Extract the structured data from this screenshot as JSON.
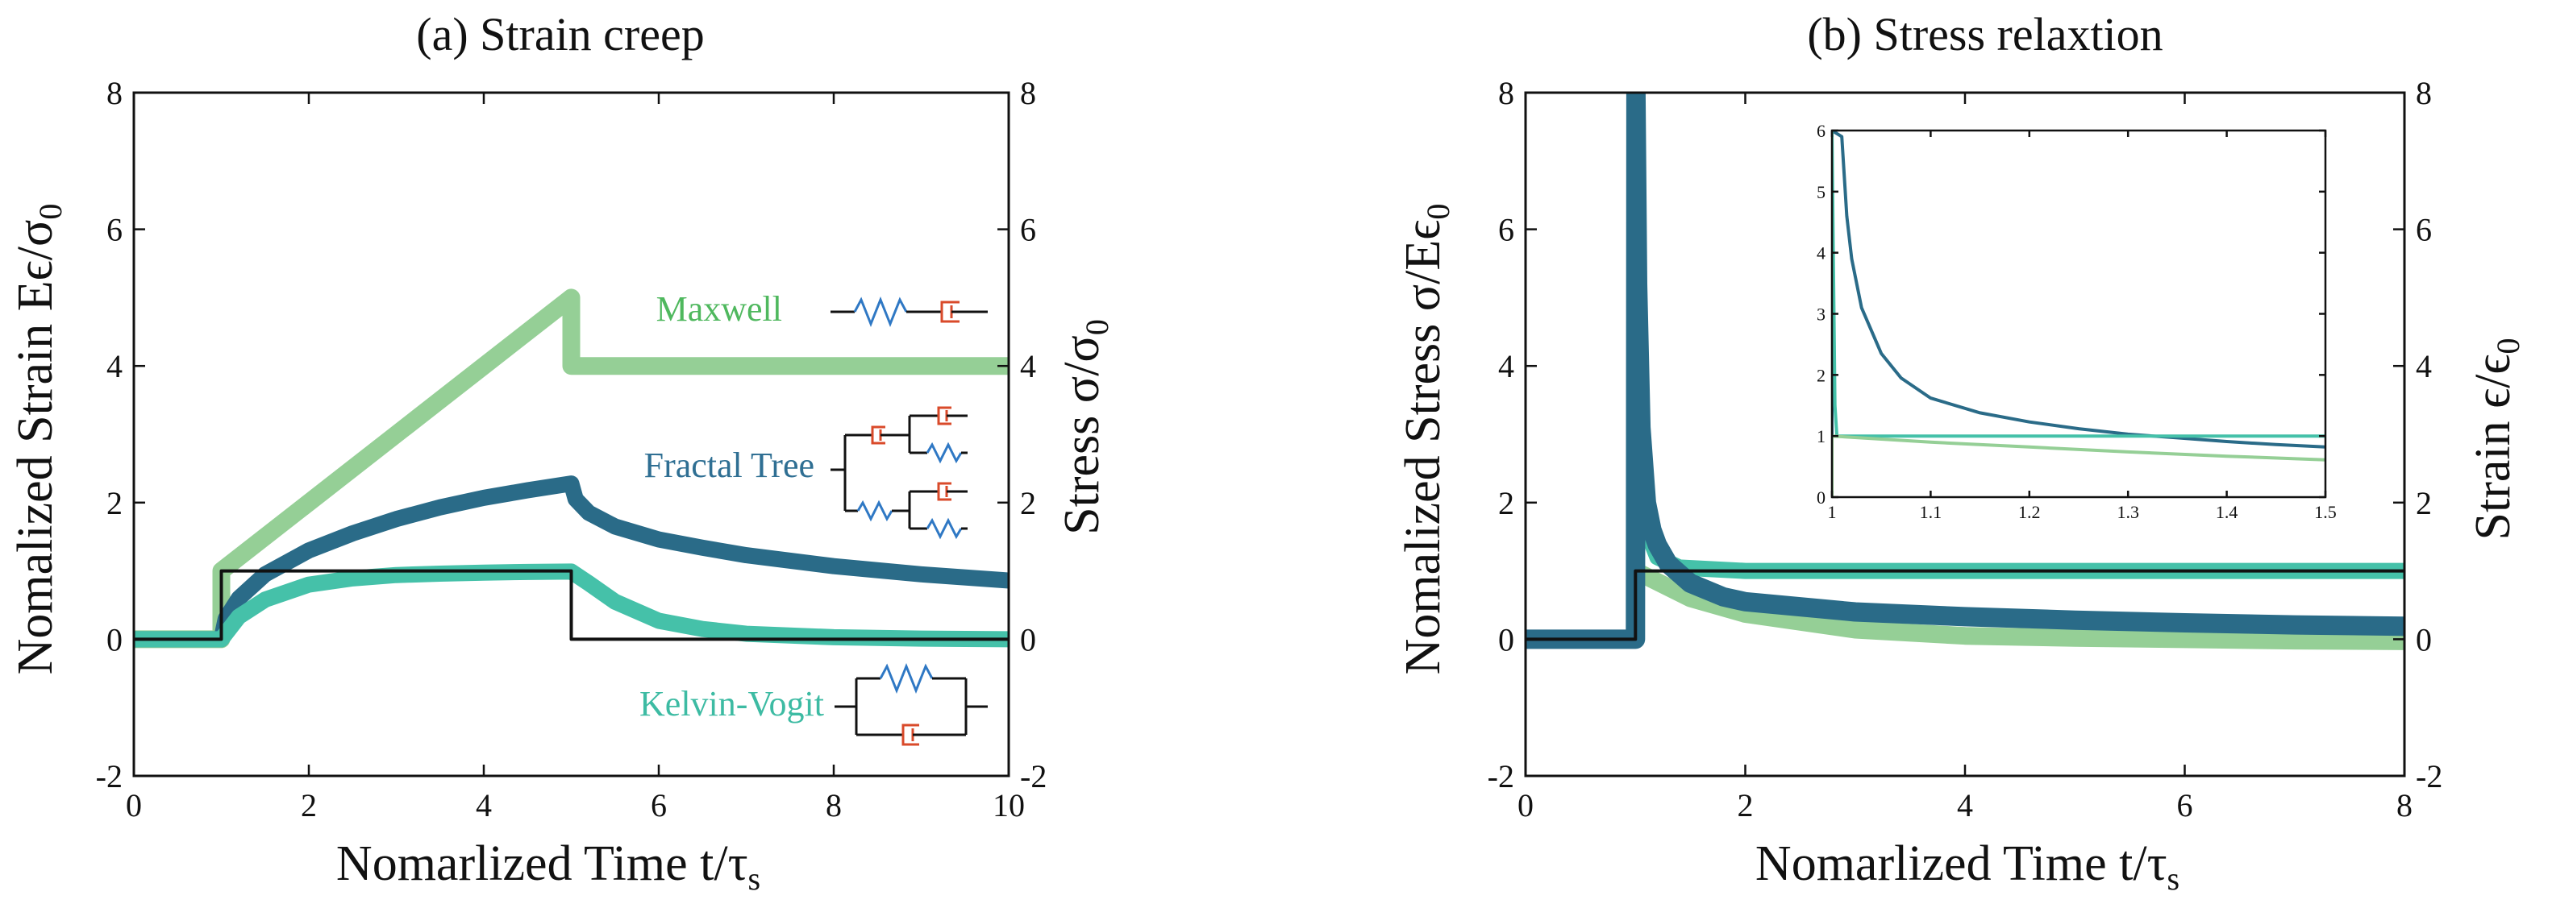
{
  "chart_data": [
    {
      "type": "line",
      "title": "(a)  Strain creep",
      "xlabel": "Nomarlized Time  t/τs",
      "ylabel": "Nomalized Strain  Eϵ/σ0",
      "y2label": "Stress  σ/σ0",
      "xlim": [
        0,
        10
      ],
      "ylim": [
        -2,
        8
      ],
      "y2lim": [
        -2,
        8
      ],
      "xticks": [
        "0",
        "2",
        "4",
        "6",
        "8",
        "10"
      ],
      "yticks": [
        "-2",
        "0",
        "2",
        "4",
        "6",
        "8"
      ],
      "y2ticks": [
        "-2",
        "0",
        "2",
        "4",
        "6",
        "8"
      ],
      "series": [
        {
          "name": "Maxwell",
          "color": "#95cf96",
          "x": [
            0,
            1,
            1,
            2,
            3,
            4,
            5,
            5,
            6,
            7,
            8,
            9,
            10
          ],
          "y": [
            0,
            0,
            1,
            2,
            3,
            4,
            5,
            4,
            4,
            4,
            4,
            4,
            4
          ]
        },
        {
          "name": "Fractal Tree",
          "color": "#2a6b88",
          "x": [
            0,
            1,
            1.05,
            1.2,
            1.5,
            2,
            2.5,
            3,
            3.5,
            4,
            4.5,
            5,
            5.05,
            5.2,
            5.5,
            6,
            6.5,
            7,
            8,
            9,
            10
          ],
          "y": [
            0,
            0,
            0.3,
            0.6,
            0.95,
            1.3,
            1.55,
            1.76,
            1.93,
            2.07,
            2.18,
            2.28,
            2.05,
            1.85,
            1.65,
            1.46,
            1.34,
            1.23,
            1.07,
            0.95,
            0.86
          ]
        },
        {
          "name": "Kelvin-Vogit",
          "color": "#45c1a9",
          "x": [
            0,
            1,
            1.2,
            1.5,
            2,
            2.5,
            3,
            3.5,
            4,
            4.5,
            5,
            5.2,
            5.5,
            6,
            6.5,
            7,
            8,
            9,
            10
          ],
          "y": [
            0,
            0,
            0.33,
            0.58,
            0.8,
            0.89,
            0.94,
            0.96,
            0.975,
            0.985,
            0.99,
            0.82,
            0.55,
            0.27,
            0.15,
            0.08,
            0.03,
            0.01,
            0.0
          ]
        },
        {
          "name": "Stress",
          "color": "#111111",
          "x": [
            0,
            1,
            1,
            5,
            5,
            10
          ],
          "y": [
            0,
            0,
            1,
            1,
            0,
            0
          ]
        }
      ]
    },
    {
      "type": "line",
      "title": "(b)  Stress relaxtion",
      "xlabel": "Nomarlized Time  t/τs",
      "ylabel": "Nomalized Stress  σ/Eϵ0",
      "y2label": "Strain  ϵ/ϵ0",
      "xlim": [
        0,
        8
      ],
      "ylim": [
        -2,
        8
      ],
      "y2lim": [
        -2,
        8
      ],
      "xticks": [
        "0",
        "2",
        "4",
        "6",
        "8"
      ],
      "yticks": [
        "-2",
        "0",
        "2",
        "4",
        "6",
        "8"
      ],
      "y2ticks": [
        "-2",
        "0",
        "2",
        "4",
        "6",
        "8"
      ],
      "series": [
        {
          "name": "Maxwell",
          "color": "#95cf96",
          "x": [
            0,
            1,
            1,
            1.5,
            2,
            3,
            4,
            5,
            6,
            7,
            8
          ],
          "y": [
            0,
            0,
            1,
            0.6,
            0.37,
            0.14,
            0.05,
            0.02,
            0.0,
            -0.02,
            -0.03
          ]
        },
        {
          "name": "Kelvin-Vogit",
          "color": "#45c1a9",
          "x": [
            0,
            1,
            1,
            1.02,
            1.1,
            1.2,
            1.4,
            2,
            8
          ],
          "y": [
            0,
            0,
            8,
            4.5,
            1.6,
            1.2,
            1.05,
            1.0,
            1.0
          ]
        },
        {
          "name": "Fractal Tree",
          "color": "#2a6b88",
          "x": [
            0,
            1,
            1.005,
            1.02,
            1.05,
            1.1,
            1.15,
            1.2,
            1.3,
            1.5,
            1.8,
            2,
            3,
            4,
            5,
            6,
            7,
            8
          ],
          "y": [
            0,
            0,
            8,
            5.2,
            3.1,
            2.0,
            1.6,
            1.38,
            1.1,
            0.82,
            0.62,
            0.55,
            0.4,
            0.33,
            0.28,
            0.24,
            0.21,
            0.19
          ]
        },
        {
          "name": "Strain",
          "color": "#111111",
          "x": [
            0,
            1,
            1,
            8
          ],
          "y": [
            0,
            0,
            1,
            1
          ]
        }
      ],
      "inset": {
        "xlim": [
          1,
          1.5
        ],
        "ylim": [
          0,
          6
        ],
        "xticks": [
          "1",
          "1.1",
          "1.2",
          "1.3",
          "1.4",
          "1.5"
        ],
        "yticks": [
          "0",
          "1",
          "2",
          "3",
          "4",
          "5",
          "6"
        ],
        "series": [
          {
            "name": "Fractal Tree",
            "color": "#2a6b88",
            "x": [
              0.998,
              1.0,
              1.0,
              1.01,
              1.015,
              1.02,
              1.03,
              1.05,
              1.07,
              1.1,
              1.15,
              1.2,
              1.25,
              1.3,
              1.35,
              1.4,
              1.45,
              1.5
            ],
            "y": [
              0,
              0,
              6,
              5.9,
              4.6,
              3.9,
              3.1,
              2.35,
              1.95,
              1.62,
              1.38,
              1.23,
              1.12,
              1.03,
              0.97,
              0.91,
              0.86,
              0.82
            ]
          },
          {
            "name": "Kelvin-Vogit",
            "color": "#45c1a9",
            "x": [
              0.998,
              0.999,
              1.0,
              1.003,
              1.005,
              1.1,
              1.5
            ],
            "y": [
              0,
              6,
              6,
              1.5,
              1.0,
              1.0,
              1.0
            ]
          },
          {
            "name": "Maxwell",
            "color": "#95cf96",
            "x": [
              0.998,
              1.0,
              1.0,
              1.1,
              1.2,
              1.3,
              1.4,
              1.5
            ],
            "y": [
              0,
              0,
              1.0,
              0.9,
              0.82,
              0.74,
              0.67,
              0.61
            ]
          }
        ]
      }
    }
  ],
  "legend": [
    {
      "label": "Maxwell",
      "color": "#4fb85e",
      "icon": "maxwell-model-icon"
    },
    {
      "label": "Fractal Tree",
      "color": "#2f6f93",
      "icon": "fractal-tree-model-icon"
    },
    {
      "label": "Kelvin-Vogit",
      "color": "#3dbba3",
      "icon": "kelvin-voigt-model-icon"
    }
  ],
  "colors": {
    "spring": "#2f78c4",
    "dashpot": "#d94a2a"
  }
}
